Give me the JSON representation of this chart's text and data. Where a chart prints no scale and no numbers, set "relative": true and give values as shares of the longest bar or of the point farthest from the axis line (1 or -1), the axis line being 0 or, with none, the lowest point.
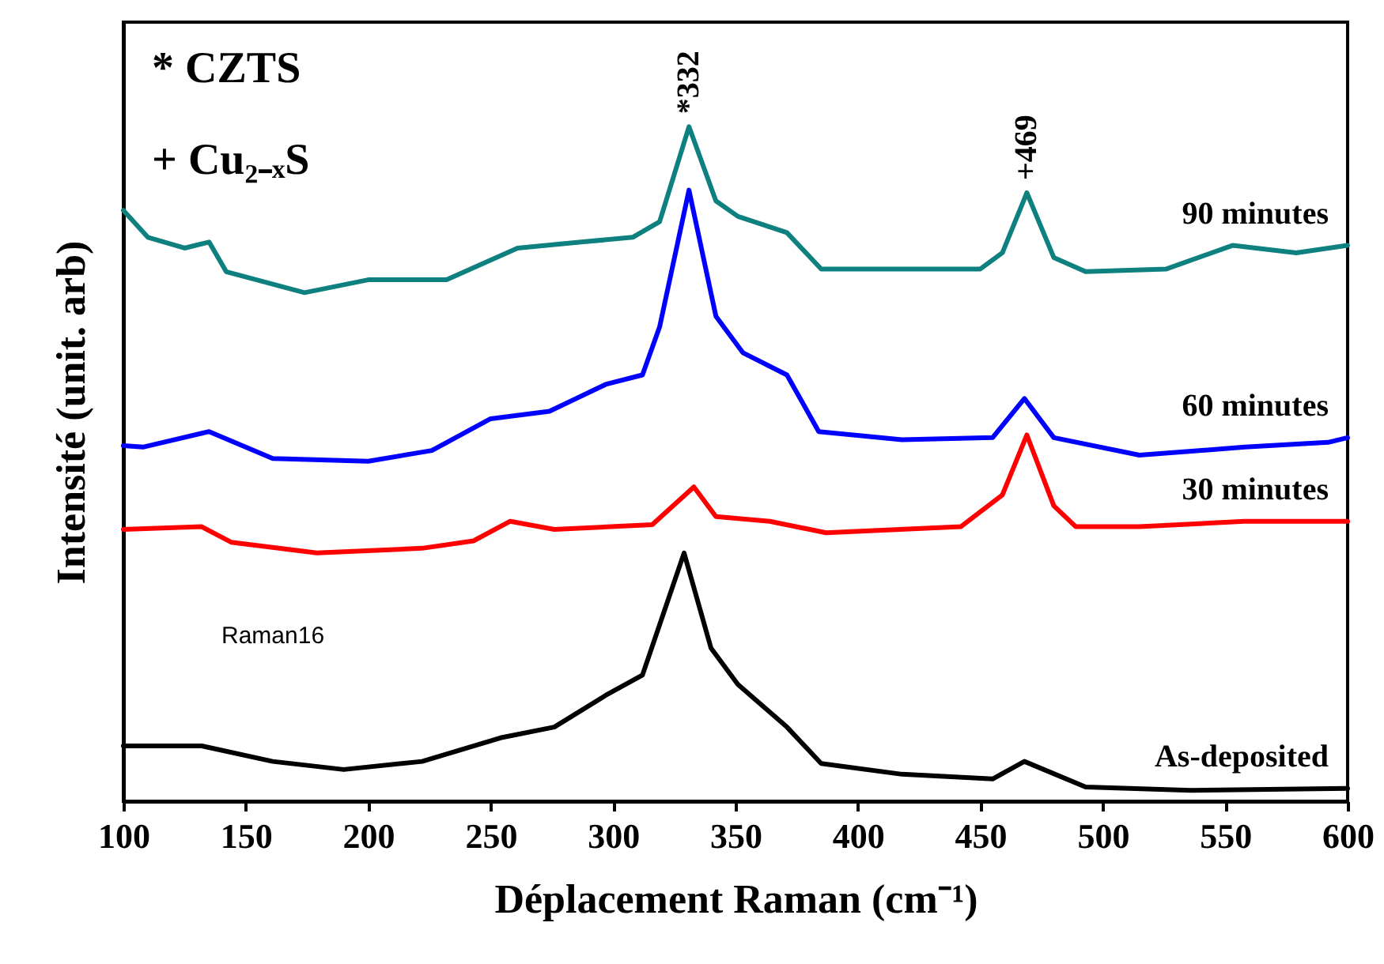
{
  "chart_data": {
    "type": "line",
    "relative": true,
    "xlabel": "Déplacement Raman (cm⁻¹)",
    "ylabel": "Intensité (unit. arb)",
    "xlim": [
      100,
      600
    ],
    "xticks": [
      100,
      150,
      200,
      250,
      300,
      350,
      400,
      450,
      500,
      550,
      600
    ],
    "grid": false,
    "marker": "none",
    "line_style": "solid",
    "series": [
      {
        "name": "90 minutes",
        "color": "#0f8080",
        "x": [
          100,
          110,
          125,
          135,
          142,
          174,
          200,
          232,
          261,
          287,
          308,
          319,
          331,
          342,
          351,
          371,
          385,
          413,
          450,
          459,
          469,
          480,
          493,
          526,
          553,
          579,
          600
        ],
        "values": [
          0.876,
          0.836,
          0.82,
          0.829,
          0.785,
          0.754,
          0.773,
          0.773,
          0.82,
          0.829,
          0.836,
          0.859,
          1.0,
          0.89,
          0.867,
          0.843,
          0.789,
          0.789,
          0.789,
          0.813,
          0.902,
          0.806,
          0.785,
          0.789,
          0.824,
          0.813,
          0.824
        ]
      },
      {
        "name": "60 minutes",
        "color": "#0000ff",
        "x": [
          100,
          108,
          135,
          161,
          200,
          226,
          250,
          274,
          297,
          312,
          319,
          331,
          342,
          353,
          371,
          384,
          418,
          455,
          468,
          480,
          515,
          558,
          592,
          600
        ],
        "values": [
          0.527,
          0.525,
          0.548,
          0.508,
          0.504,
          0.52,
          0.567,
          0.578,
          0.618,
          0.632,
          0.703,
          0.906,
          0.719,
          0.665,
          0.632,
          0.548,
          0.536,
          0.539,
          0.597,
          0.539,
          0.513,
          0.525,
          0.532,
          0.539
        ]
      },
      {
        "name": "30 minutes",
        "color": "#ff0000",
        "x": [
          100,
          132,
          144,
          179,
          222,
          243,
          258,
          276,
          316,
          333,
          342,
          364,
          387,
          442,
          459,
          469,
          480,
          489,
          515,
          558,
          600
        ],
        "values": [
          0.403,
          0.407,
          0.384,
          0.368,
          0.375,
          0.386,
          0.415,
          0.403,
          0.41,
          0.466,
          0.422,
          0.415,
          0.398,
          0.407,
          0.454,
          0.543,
          0.438,
          0.407,
          0.407,
          0.415,
          0.415
        ]
      },
      {
        "name": "As-deposited",
        "color": "#000000",
        "x": [
          100,
          132,
          161,
          190,
          222,
          254,
          276,
          297,
          312,
          329,
          340,
          351,
          371,
          385,
          418,
          455,
          468,
          493,
          536,
          600
        ],
        "values": [
          0.082,
          0.082,
          0.059,
          0.047,
          0.059,
          0.094,
          0.11,
          0.157,
          0.187,
          0.368,
          0.227,
          0.173,
          0.11,
          0.056,
          0.04,
          0.033,
          0.059,
          0.021,
          0.016,
          0.019
        ]
      }
    ],
    "annotations": [
      "* CZTS",
      "+ Cu₂₋ₓS",
      "Raman16",
      {
        "text": "*332",
        "x": 331,
        "y": 1.0
      },
      {
        "text": "+469",
        "x": 469,
        "y": 0.902
      }
    ]
  }
}
